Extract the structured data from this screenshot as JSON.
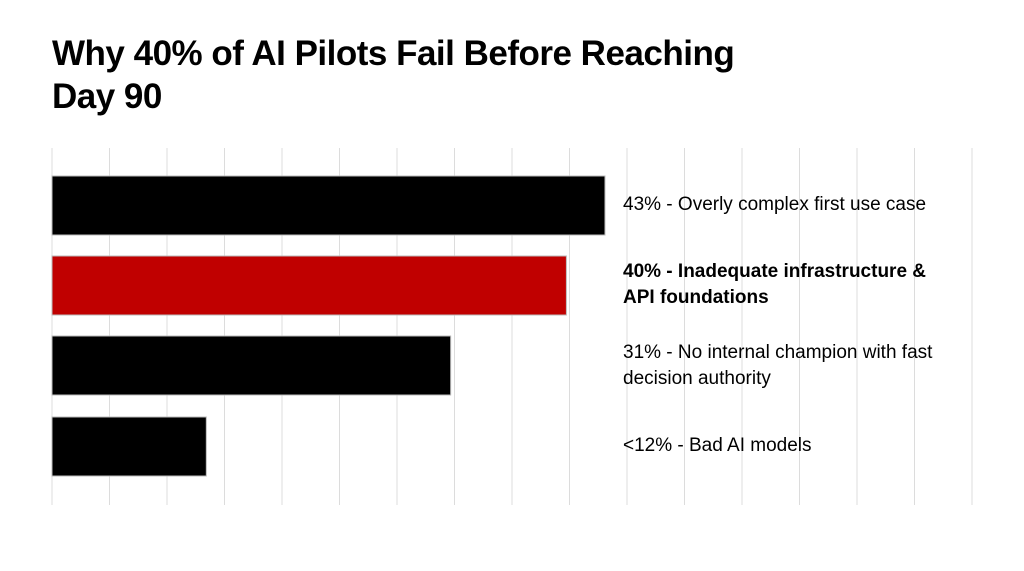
{
  "chart_data": {
    "type": "bar",
    "orientation": "horizontal",
    "title": "Why 40% of AI Pilots Fail Before Reaching Day 90",
    "categories": [
      "43% - Overly complex first use case",
      "40% - Inadequate infrastructure & API foundations",
      "31% - No internal champion with fast decision authority",
      "<12% - Bad AI models"
    ],
    "values": [
      43,
      40,
      31,
      12
    ],
    "highlight_index": 1,
    "colors": [
      "#000000",
      "#c00000",
      "#000000",
      "#000000"
    ],
    "grid": "vertical lines",
    "xlabel": "",
    "ylabel": ""
  }
}
